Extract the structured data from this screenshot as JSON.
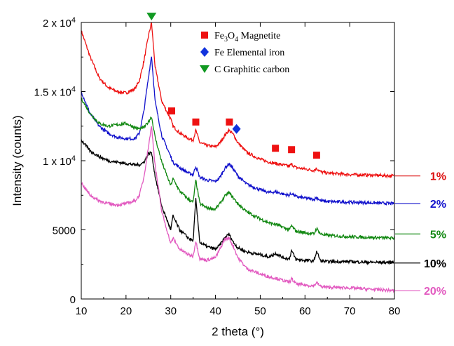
{
  "chart_data": {
    "type": "line",
    "xlabel": "2 theta (°)",
    "ylabel": "Intensity (counts)",
    "xlim": [
      10,
      80
    ],
    "ylim": [
      0,
      20000
    ],
    "x_ticks": [
      10,
      20,
      30,
      40,
      50,
      60,
      70,
      80
    ],
    "x_tick_labels": [
      "10",
      "20",
      "30",
      "40",
      "50",
      "60",
      "70",
      "80"
    ],
    "y_ticks": [
      0,
      5000,
      10000,
      15000,
      20000
    ],
    "y_tick_labels": [
      {
        "main": "0",
        "exp": ""
      },
      {
        "main": "5000",
        "exp": ""
      },
      {
        "main": "1 x 10",
        "exp": "4"
      },
      {
        "main": "1.5 x 10",
        "exp": "4"
      },
      {
        "main": "2 x 10",
        "exp": "4"
      }
    ],
    "series": [
      {
        "name": "1%",
        "color": "#ee1111",
        "x": [
          10,
          12,
          14,
          16,
          18,
          20,
          22,
          23,
          24,
          25,
          25.7,
          26.5,
          28,
          30,
          30.5,
          32,
          34,
          35,
          35.6,
          36.5,
          38,
          40,
          41,
          42,
          43,
          44,
          45,
          47,
          50,
          52,
          53.5,
          55,
          56.5,
          57,
          58,
          60,
          62,
          62.6,
          63.5,
          65,
          70,
          75,
          80
        ],
        "values": [
          19400,
          17500,
          16000,
          15300,
          15000,
          14900,
          15200,
          15800,
          17200,
          19000,
          20000,
          16800,
          14300,
          13000,
          12500,
          12000,
          11600,
          11500,
          12200,
          11300,
          11100,
          11000,
          11300,
          11800,
          12200,
          11900,
          11300,
          10600,
          10100,
          9900,
          9800,
          9700,
          9600,
          9750,
          9500,
          9400,
          9300,
          9450,
          9200,
          9100,
          9000,
          8950,
          8900
        ]
      },
      {
        "name": "2%",
        "color": "#1111cc",
        "x": [
          10,
          12,
          14,
          16,
          18,
          20,
          22,
          23,
          24,
          25,
          25.7,
          26.5,
          28,
          30,
          30.5,
          32,
          34,
          35,
          35.6,
          36.5,
          38,
          40,
          41,
          42,
          43,
          44,
          45,
          47,
          50,
          52,
          53.5,
          55,
          56.5,
          57,
          58,
          60,
          62,
          62.6,
          63.5,
          65,
          70,
          75,
          80
        ],
        "values": [
          15000,
          13400,
          12500,
          12000,
          11700,
          11600,
          11600,
          12000,
          13600,
          16000,
          17600,
          14300,
          11800,
          10300,
          9900,
          9500,
          9100,
          9000,
          9600,
          8800,
          8600,
          8500,
          8800,
          9400,
          9800,
          9400,
          8900,
          8300,
          7900,
          7700,
          7750,
          7600,
          7500,
          7650,
          7400,
          7300,
          7200,
          7350,
          7100,
          7050,
          7000,
          6950,
          6900
        ]
      },
      {
        "name": "5%",
        "color": "#118811",
        "x": [
          10,
          12,
          14,
          16,
          18,
          20,
          22,
          23,
          24,
          25,
          25.7,
          26.5,
          28,
          30,
          30.5,
          32,
          34,
          35,
          35.6,
          36.5,
          38,
          40,
          41,
          42,
          43,
          44,
          45,
          47,
          50,
          52,
          53.5,
          55,
          56.5,
          57,
          58,
          60,
          62,
          62.6,
          63.5,
          65,
          70,
          75,
          80
        ],
        "values": [
          14500,
          13400,
          12700,
          12500,
          12600,
          12700,
          12400,
          12300,
          12400,
          12800,
          13200,
          11700,
          9900,
          8200,
          8700,
          7800,
          7200,
          7000,
          8600,
          6900,
          6600,
          6500,
          6900,
          7400,
          7700,
          7300,
          6900,
          6300,
          5800,
          5500,
          5400,
          5200,
          5000,
          5300,
          4900,
          4800,
          4700,
          5100,
          4700,
          4600,
          4500,
          4450,
          4400
        ]
      },
      {
        "name": "10%",
        "color": "#000000",
        "x": [
          10,
          12,
          14,
          16,
          18,
          20,
          22,
          23,
          24,
          25,
          25.7,
          26.5,
          28,
          30,
          30.5,
          32,
          34,
          35,
          35.6,
          36.5,
          38,
          40,
          41,
          42,
          43,
          44,
          45,
          47,
          50,
          52,
          53.5,
          55,
          56.5,
          57,
          58,
          60,
          62,
          62.6,
          63.5,
          65,
          70,
          75,
          80
        ],
        "values": [
          11500,
          10700,
          10300,
          10000,
          9900,
          9800,
          9700,
          9700,
          9900,
          10500,
          10600,
          8900,
          6700,
          5000,
          6000,
          5000,
          4400,
          4200,
          7200,
          4100,
          3800,
          3600,
          3900,
          4400,
          4700,
          4100,
          3700,
          3400,
          3200,
          3050,
          3300,
          3000,
          2900,
          3500,
          2850,
          2800,
          2750,
          3450,
          2750,
          2700,
          2700,
          2650,
          2650
        ]
      },
      {
        "name": "20%",
        "color": "#e25ac0",
        "x": [
          10,
          12,
          14,
          16,
          18,
          20,
          22,
          23,
          24,
          25,
          25.7,
          26.5,
          28,
          30,
          30.5,
          32,
          34,
          35,
          35.6,
          36.5,
          38,
          40,
          41,
          42,
          43,
          44,
          45,
          47,
          50,
          52,
          53.5,
          55,
          56.5,
          57,
          58,
          60,
          62,
          62.6,
          63.5,
          65,
          70,
          75,
          80
        ],
        "values": [
          8400,
          7500,
          7100,
          6900,
          6800,
          6900,
          7100,
          7500,
          8800,
          11000,
          12500,
          9700,
          6300,
          4000,
          4400,
          3600,
          3200,
          3100,
          4200,
          2900,
          2800,
          3000,
          3600,
          4300,
          4400,
          3800,
          3000,
          2200,
          1800,
          1600,
          1500,
          1350,
          1200,
          1450,
          1100,
          1000,
          950,
          1200,
          900,
          850,
          800,
          700,
          600
        ]
      }
    ],
    "legend": [
      {
        "marker": "square",
        "color": "#ee1111",
        "label_main": "Fe",
        "label_sub1": "3",
        "label_mid": "O",
        "label_sub2": "4",
        "label_rest": " Magnetite"
      },
      {
        "marker": "diamond",
        "color": "#1133dd",
        "label_main": "Fe Elemental iron",
        "label_sub1": "",
        "label_mid": "",
        "label_sub2": "",
        "label_rest": ""
      },
      {
        "marker": "triangle-down",
        "color": "#119922",
        "label_main": "C Graphitic carbon",
        "label_sub1": "",
        "label_mid": "",
        "label_sub2": "",
        "label_rest": ""
      }
    ],
    "legend_placement": "top-center",
    "peak_markers": [
      {
        "type": "triangle-down",
        "color": "#119922",
        "x": 25.7,
        "y": 20450
      },
      {
        "type": "square",
        "color": "#ee1111",
        "x": 30.2,
        "y": 13600
      },
      {
        "type": "square",
        "color": "#ee1111",
        "x": 35.6,
        "y": 12800
      },
      {
        "type": "square",
        "color": "#ee1111",
        "x": 43.1,
        "y": 12800
      },
      {
        "type": "diamond",
        "color": "#1133dd",
        "x": 44.7,
        "y": 12300
      },
      {
        "type": "square",
        "color": "#ee1111",
        "x": 53.4,
        "y": 10900
      },
      {
        "type": "square",
        "color": "#ee1111",
        "x": 57.0,
        "y": 10800
      },
      {
        "type": "square",
        "color": "#ee1111",
        "x": 62.6,
        "y": 10400
      }
    ],
    "series_labels": [
      {
        "text": "1%",
        "color": "#dd1111",
        "y": 8900
      },
      {
        "text": "2%",
        "color": "#1111cc",
        "y": 6900
      },
      {
        "text": "5%",
        "color": "#118811",
        "y": 4700
      },
      {
        "text": "10%",
        "color": "#000000",
        "y": 2600
      },
      {
        "text": "20%",
        "color": "#e25ac0",
        "y": 600
      }
    ],
    "grid": false
  }
}
